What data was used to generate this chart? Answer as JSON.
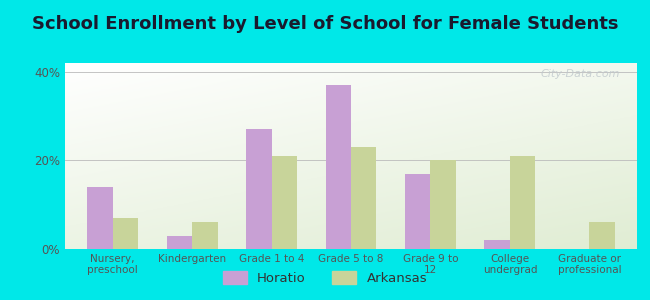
{
  "title": "School Enrollment by Level of School for Female Students",
  "categories": [
    "Nursery,\npreschool",
    "Kindergarten",
    "Grade 1 to 4",
    "Grade 5 to 8",
    "Grade 9 to\n12",
    "College\nundergrad",
    "Graduate or\nprofessional"
  ],
  "horatio": [
    14,
    3,
    27,
    37,
    17,
    2,
    0
  ],
  "arkansas": [
    7,
    6,
    21,
    23,
    20,
    21,
    6
  ],
  "horatio_color": "#c8a0d4",
  "arkansas_color": "#c8d49a",
  "background_color": "#00e8e8",
  "ylim": [
    0,
    42
  ],
  "yticks": [
    0,
    20,
    40
  ],
  "ytick_labels": [
    "0%",
    "20%",
    "40%"
  ],
  "bar_width": 0.32,
  "title_fontsize": 13,
  "legend_labels": [
    "Horatio",
    "Arkansas"
  ],
  "watermark": "City-Data.com",
  "tick_color": "#555555",
  "grid_color": "#bbbbbb"
}
